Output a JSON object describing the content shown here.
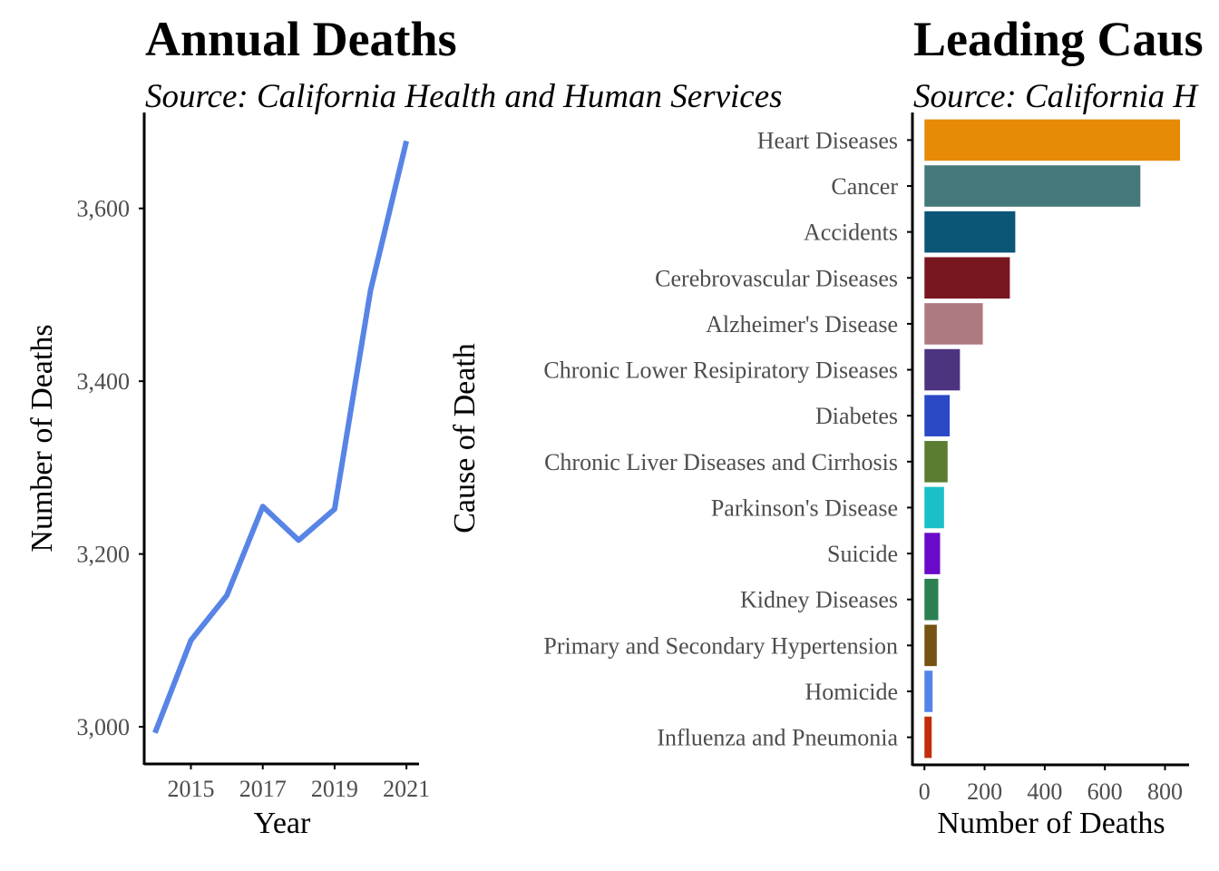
{
  "chart_data": [
    {
      "type": "line",
      "title": "Annual Deaths",
      "subtitle": "Source: California Health and Human Services",
      "xlabel": "Year",
      "ylabel": "Number of Deaths",
      "x": [
        2014,
        2015,
        2016,
        2017,
        2018,
        2019,
        2020,
        2021
      ],
      "series": [
        {
          "values": [
            2993,
            3100,
            3152,
            3255,
            3216,
            3252,
            3505,
            3678
          ]
        }
      ],
      "xlim": [
        2013.7,
        2021.35
      ],
      "ylim": [
        2957,
        3711
      ],
      "x_ticks": [
        2015,
        2017,
        2019,
        2021
      ],
      "x_tick_labels": [
        "2015",
        "2017",
        "2019",
        "2021"
      ],
      "y_ticks": [
        3000,
        3200,
        3400,
        3600
      ],
      "y_tick_labels": [
        "3,000",
        "3,200",
        "3,400",
        "3,600"
      ],
      "line_color": "#5884E6",
      "grid": false
    },
    {
      "type": "bar",
      "orientation": "horizontal",
      "title": "Leading Caus",
      "subtitle": "Source: California H",
      "xlabel": "Number of Deaths",
      "ylabel": "Cause of Death",
      "categories": [
        "Heart Diseases",
        "Cancer",
        "Accidents",
        "Cerebrovascular Diseases",
        "Alzheimer's Disease",
        "Chronic Lower Resipiratory Diseases",
        "Diabetes",
        "Chronic Liver Diseases and Cirrhosis",
        "Parkinson's Disease",
        "Suicide",
        "Kidney Diseases",
        "Primary and Secondary Hypertension",
        "Homicide",
        "Influenza and Pneumonia"
      ],
      "values": [
        850,
        718,
        302,
        284,
        194,
        118,
        84,
        77,
        65,
        52,
        46,
        41,
        27,
        24
      ],
      "colors": [
        "#E78A05",
        "#44787A",
        "#0B5577",
        "#78171F",
        "#AD7B7F",
        "#4C3480",
        "#2B48C6",
        "#5A7D32",
        "#1BBFC7",
        "#6A09C8",
        "#2A8050",
        "#765312",
        "#5583E8",
        "#C22D0A"
      ],
      "xlim": [
        -40,
        880
      ],
      "x_ticks": [
        0,
        200,
        400,
        600,
        800
      ],
      "x_tick_labels": [
        "0",
        "200",
        "400",
        "600",
        "800"
      ],
      "grid": false
    }
  ]
}
